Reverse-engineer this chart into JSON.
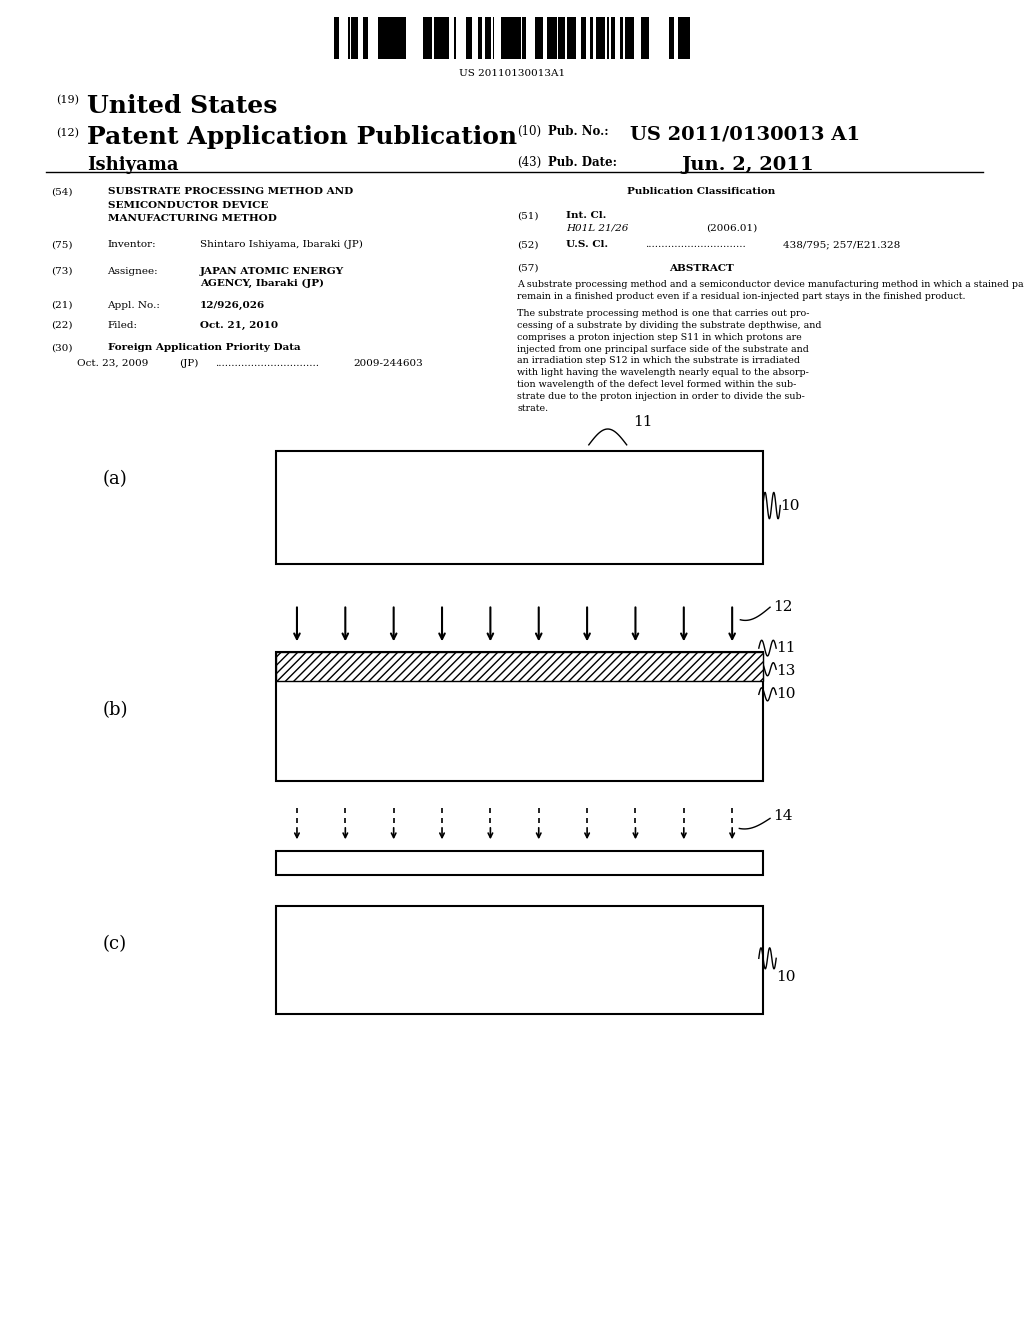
{
  "background_color": "#ffffff",
  "barcode_text": "US 20110130013A1",
  "header": {
    "num19": "(19)",
    "title19": "United States",
    "num12": "(12)",
    "title12": "Patent Application Publication",
    "inventor_name": "Ishiyama",
    "num10": "(10)",
    "pub_no_label": "Pub. No.:",
    "pub_no_val": "US 2011/0130013 A1",
    "num43": "(43)",
    "pub_date_label": "Pub. Date:",
    "pub_date_val": "Jun. 2, 2011"
  },
  "left_col": {
    "num54": "(54)",
    "title54_1": "SUBSTRATE PROCESSING METHOD AND",
    "title54_2": "SEMICONDUCTOR DEVICE",
    "title54_3": "MANUFACTURING METHOD",
    "num75": "(75)",
    "label75": "Inventor:",
    "val75": "Shintaro Ishiyama, Ibaraki (JP)",
    "num73": "(73)",
    "label73": "Assignee:",
    "val73_1": "JAPAN ATOMIC ENERGY",
    "val73_2": "AGENCY, Ibaraki (JP)",
    "num21": "(21)",
    "label21": "Appl. No.:",
    "val21": "12/926,026",
    "num22": "(22)",
    "label22": "Filed:",
    "val22": "Oct. 21, 2010",
    "num30": "(30)",
    "label30": "Foreign Application Priority Data",
    "priority_date": "Oct. 23, 2009",
    "priority_country": "(JP)",
    "priority_dots": "................................",
    "priority_num": "2009-244603"
  },
  "right_col": {
    "pub_class_title": "Publication Classification",
    "int_cl_num": "(51)",
    "int_cl_label": "Int. Cl.",
    "int_cl_code": "H01L 21/26",
    "int_cl_year": "(2006.01)",
    "us_cl_num": "(52)",
    "us_cl_label": "U.S. Cl.",
    "us_cl_dots": "...............................",
    "us_cl_value": "438/795; 257/E21.328",
    "abstract_num": "(57)",
    "abstract_title": "ABSTRACT",
    "abstract_lines_1": [
      "A substrate processing method and a semiconductor device manufacturing method in which a stained part does not",
      "remain in a finished product even if a residual ion-injected part stays in the finished product."
    ],
    "abstract_lines_2": [
      "The substrate processing method is one that carries out pro-",
      "cessing of a substrate by dividing the substrate depthwise, and",
      "comprises a proton injection step S11 in which protons are",
      "injected from one principal surface side of the substrate and",
      "an irradiation step S12 in which the substrate is irradiated",
      "with light having the wavelength nearly equal to the absorp-",
      "tion wavelength of the defect level formed within the sub-",
      "strate due to the proton injection in order to divide the sub-",
      "strate."
    ]
  },
  "diagram": {
    "panel_a_label": "(a)",
    "panel_b_label": "(b)",
    "panel_c_label": "(c)",
    "label_10": "10",
    "label_11": "11",
    "label_12": "12",
    "label_13": "13",
    "label_14": "14"
  }
}
